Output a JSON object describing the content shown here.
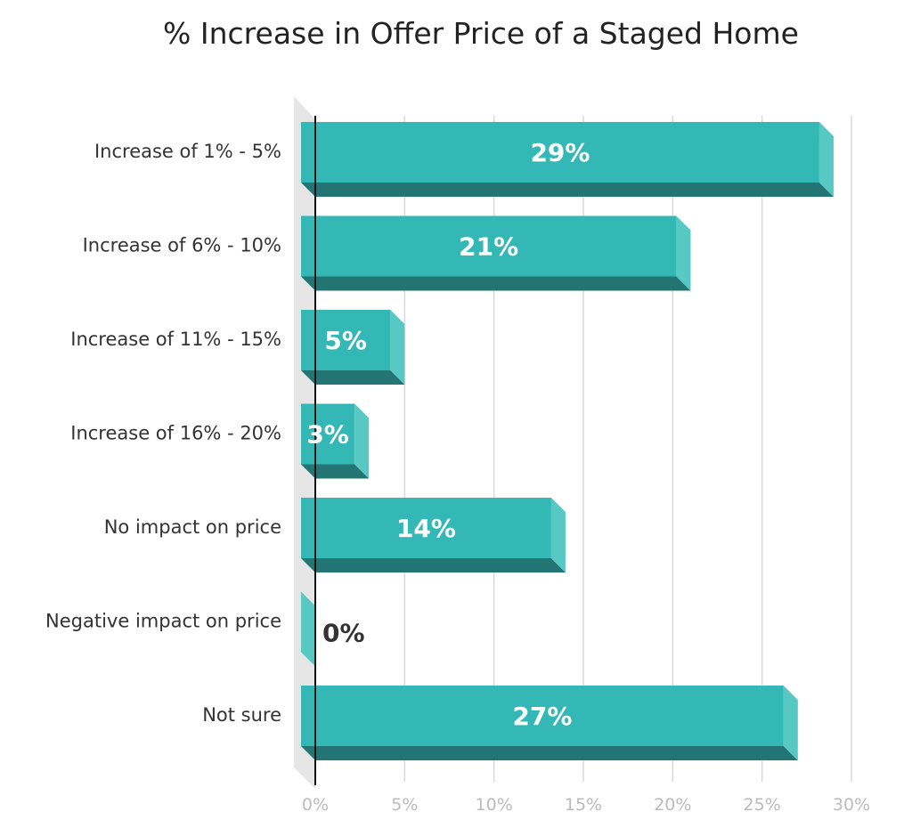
{
  "chart_data": {
    "type": "bar",
    "orientation": "horizontal",
    "title": "% Increase in Offer Price of a Staged Home",
    "categories": [
      "Increase of 1% - 5%",
      "Increase of 6% - 10%",
      "Increase of 11% - 15%",
      "Increase of 16% - 20%",
      "No impact on price",
      "Negative impact on price",
      "Not sure"
    ],
    "values": [
      29,
      21,
      5,
      3,
      14,
      0,
      27
    ],
    "value_labels": [
      "29%",
      "21%",
      "5%",
      "3%",
      "14%",
      "0%",
      "27%"
    ],
    "xlim": [
      0,
      30
    ],
    "x_ticks": [
      0,
      5,
      10,
      15,
      20,
      25,
      30
    ],
    "x_tick_labels": [
      "0%",
      "5%",
      "10%",
      "15%",
      "20%",
      "25%",
      "30%"
    ],
    "grid": true,
    "style": "3d",
    "colors": {
      "bar_front": "#34b8b6",
      "bar_top": "#58c8c4",
      "bar_bottom": "#227572",
      "floor": "#e6e6e6",
      "grid": "#d9d9d9",
      "axis": "#111111",
      "label_inside": "#ffffff",
      "label_outside": "#333333"
    }
  }
}
